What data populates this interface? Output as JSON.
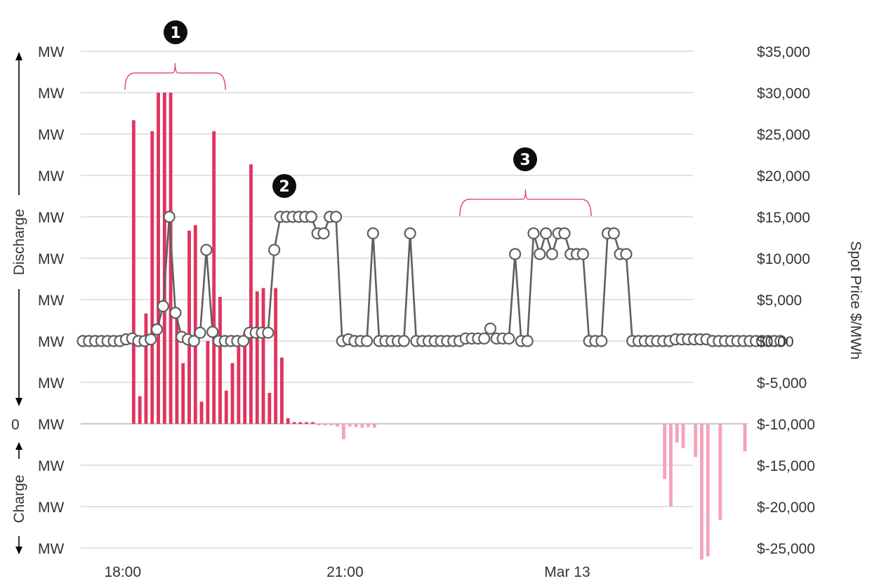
{
  "chart_data": {
    "type": "bar+line",
    "left_axis": {
      "unit_label": "MW",
      "zero_label": "0",
      "discharge_label": "Discharge",
      "charge_label": "Charge",
      "levels": 13
    },
    "right_axis": {
      "title": "Spot Price $/MWh",
      "ticks": [
        "$35,000",
        "$30,000",
        "$25,000",
        "$20,000",
        "$15,000",
        "$10,000",
        "$5,000",
        "$0.00",
        "$-5,000",
        "$-10,000",
        "$-15,000",
        "$-20,000",
        "$-25,000"
      ],
      "ylim": [
        -25000,
        35000
      ]
    },
    "x_axis": {
      "labels": [
        {
          "text": "18:00",
          "time": 6
        },
        {
          "text": "21:00",
          "time": 42
        },
        {
          "text": "Mar 13",
          "time": 78
        }
      ],
      "count": 108
    },
    "annotations": [
      {
        "marker": "1",
        "from": 7,
        "to": 24
      },
      {
        "marker": "2"
      },
      {
        "marker": "3",
        "from": 62,
        "to": 84
      }
    ],
    "series": [
      {
        "kind": "bar",
        "values": [
          {
            "i": 8,
            "v": 27500
          },
          {
            "i": 9,
            "v": 2500
          },
          {
            "i": 10,
            "v": 10000
          },
          {
            "i": 11,
            "v": 26500
          },
          {
            "i": 12,
            "v": 30000
          },
          {
            "i": 13,
            "v": 30000
          },
          {
            "i": 14,
            "v": 30000
          },
          {
            "i": 15,
            "v": 9500
          },
          {
            "i": 16,
            "v": 5500
          },
          {
            "i": 17,
            "v": 17500
          },
          {
            "i": 18,
            "v": 18000
          },
          {
            "i": 19,
            "v": 2000
          },
          {
            "i": 20,
            "v": 7500
          },
          {
            "i": 21,
            "v": 26500
          },
          {
            "i": 22,
            "v": 11500
          },
          {
            "i": 23,
            "v": 3000
          },
          {
            "i": 24,
            "v": 5500
          },
          {
            "i": 25,
            "v": 7000
          },
          {
            "i": 26,
            "v": 8300
          },
          {
            "i": 27,
            "v": 23500
          },
          {
            "i": 28,
            "v": 12000
          },
          {
            "i": 29,
            "v": 12300
          },
          {
            "i": 30,
            "v": 2800
          },
          {
            "i": 31,
            "v": 12300
          },
          {
            "i": 32,
            "v": 6000
          },
          {
            "i": 33,
            "v": 500
          },
          {
            "i": 34,
            "v": 150
          },
          {
            "i": 35,
            "v": 150
          },
          {
            "i": 36,
            "v": 150
          },
          {
            "i": 37,
            "v": 150
          },
          {
            "i": 38,
            "v": -150
          },
          {
            "i": 39,
            "v": -150
          },
          {
            "i": 40,
            "v": -150
          },
          {
            "i": 41,
            "v": -250
          },
          {
            "i": 42,
            "v": -1400
          },
          {
            "i": 43,
            "v": -250
          },
          {
            "i": 44,
            "v": -300
          },
          {
            "i": 45,
            "v": -350
          },
          {
            "i": 46,
            "v": -300
          },
          {
            "i": 47,
            "v": -350
          },
          {
            "i": 94,
            "v": -5000
          },
          {
            "i": 95,
            "v": -7500
          },
          {
            "i": 96,
            "v": -1700
          },
          {
            "i": 97,
            "v": -2200
          },
          {
            "i": 99,
            "v": -3000
          },
          {
            "i": 100,
            "v": -12300
          },
          {
            "i": 101,
            "v": -12000
          },
          {
            "i": 103,
            "v": -8700
          },
          {
            "i": 107,
            "v": -2500
          }
        ]
      },
      {
        "kind": "line",
        "values": [
          0,
          0,
          0,
          0,
          0,
          0,
          0,
          200,
          300,
          0,
          0,
          200,
          1400,
          4200,
          15000,
          3400,
          500,
          200,
          0,
          1000,
          11000,
          1100,
          0,
          0,
          0,
          0,
          0,
          1000,
          1000,
          1000,
          1000,
          11000,
          15000,
          15000,
          15000,
          15000,
          15000,
          15000,
          13000,
          13000,
          15000,
          15000,
          0,
          200,
          0,
          0,
          0,
          13000,
          0,
          0,
          0,
          0,
          0,
          13000,
          0,
          0,
          0,
          0,
          0,
          0,
          0,
          0,
          300,
          300,
          300,
          300,
          1500,
          300,
          300,
          300,
          10500,
          0,
          0,
          13000,
          10500,
          13000,
          10500,
          13000,
          13000,
          10500,
          10500,
          10500,
          0,
          0,
          0,
          13000,
          13000,
          10500,
          10500,
          0,
          0,
          0,
          0,
          0,
          0,
          0,
          200,
          200,
          200,
          200,
          200,
          200,
          0,
          0,
          0,
          0,
          0,
          0,
          0,
          0,
          0,
          0,
          0,
          0
        ]
      }
    ]
  }
}
